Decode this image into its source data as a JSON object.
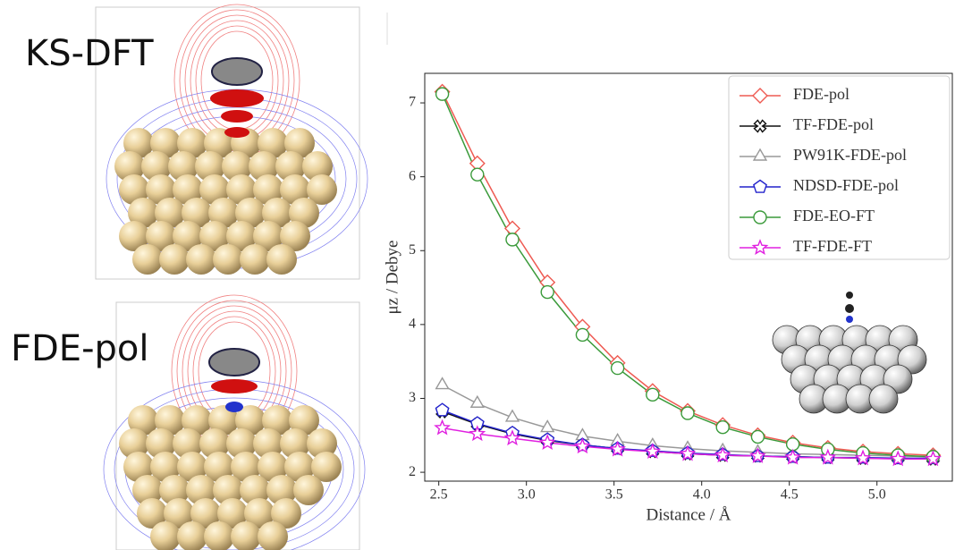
{
  "labels": {
    "top": "KS-DFT",
    "bottom": "FDE-pol"
  },
  "chart_data": {
    "type": "line",
    "x_label": "Distance / Å",
    "y_label": "μz / Debye",
    "x": [
      2.52,
      2.72,
      2.92,
      3.12,
      3.32,
      3.52,
      3.72,
      3.92,
      4.12,
      4.32,
      4.52,
      4.72,
      4.92,
      5.12,
      5.32
    ],
    "xlim": [
      2.42,
      5.43
    ],
    "ylim": [
      1.88,
      7.4
    ],
    "xticks": [
      2.5,
      {
        "value": 3,
        "label": "3.0"
      },
      3.5,
      {
        "value": 4,
        "label": "4.0"
      },
      4.5,
      {
        "value": 5,
        "label": "5.0"
      }
    ],
    "yticks": [
      2,
      3,
      4,
      5,
      6,
      7
    ],
    "legend": "upper right",
    "series": [
      {
        "name": "FDE-pol",
        "color": "#ee5a52",
        "marker": "diamond",
        "values": [
          7.15,
          6.18,
          5.3,
          4.57,
          3.97,
          3.48,
          3.1,
          2.83,
          2.64,
          2.5,
          2.4,
          2.33,
          2.28,
          2.25,
          2.23
        ]
      },
      {
        "name": "TF-FDE-pol",
        "color": "#111111",
        "marker": "cross",
        "values": [
          2.82,
          2.65,
          2.52,
          2.43,
          2.37,
          2.32,
          2.28,
          2.25,
          2.23,
          2.22,
          2.21,
          2.2,
          2.19,
          2.19,
          2.18
        ]
      },
      {
        "name": "PW91K-FDE-pol",
        "color": "#999999",
        "marker": "triangle",
        "values": [
          3.18,
          2.93,
          2.74,
          2.6,
          2.49,
          2.42,
          2.36,
          2.32,
          2.29,
          2.27,
          2.25,
          2.24,
          2.23,
          2.22,
          2.21
        ]
      },
      {
        "name": "NDSD-FDE-pol",
        "color": "#2222cc",
        "marker": "pentagon",
        "values": [
          2.84,
          2.66,
          2.53,
          2.44,
          2.37,
          2.32,
          2.29,
          2.26,
          2.24,
          2.22,
          2.21,
          2.2,
          2.2,
          2.19,
          2.19
        ]
      },
      {
        "name": "FDE-EO-FT",
        "color": "#3a9a3a",
        "marker": "circle",
        "values": [
          7.12,
          6.03,
          5.15,
          4.44,
          3.86,
          3.41,
          3.05,
          2.8,
          2.61,
          2.48,
          2.38,
          2.31,
          2.26,
          2.23,
          2.21
        ]
      },
      {
        "name": "TF-FDE-FT",
        "color": "#e020e0",
        "marker": "star",
        "values": [
          2.6,
          2.52,
          2.46,
          2.4,
          2.35,
          2.31,
          2.28,
          2.25,
          2.23,
          2.22,
          2.2,
          2.2,
          2.19,
          2.18,
          2.18
        ]
      }
    ]
  }
}
